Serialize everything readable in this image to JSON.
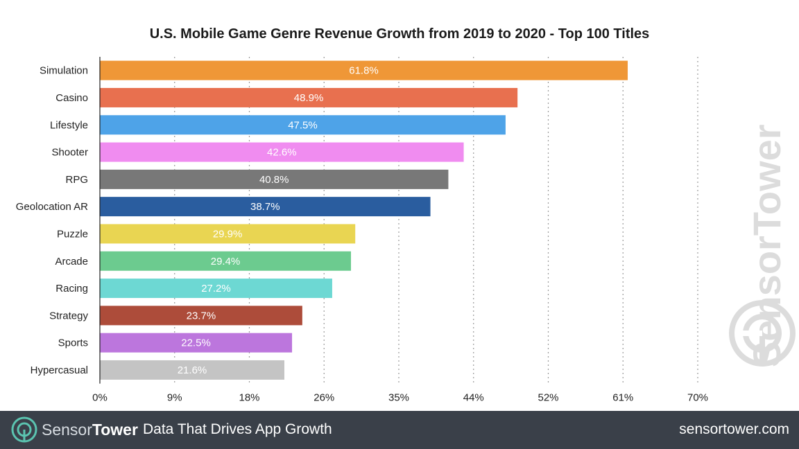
{
  "chart_data": {
    "type": "bar",
    "orientation": "horizontal",
    "title": "U.S. Mobile Game Genre Revenue Growth from 2019 to 2020 - Top 100 Titles",
    "xlabel": "",
    "ylabel": "",
    "xlim": [
      0,
      70
    ],
    "grid": "vertical dotted",
    "x_ticks": [
      "0%",
      "9%",
      "18%",
      "26%",
      "35%",
      "44%",
      "52%",
      "61%",
      "70%"
    ],
    "categories": [
      "Simulation",
      "Casino",
      "Lifestyle",
      "Shooter",
      "RPG",
      "Geolocation AR",
      "Puzzle",
      "Arcade",
      "Racing",
      "Strategy",
      "Sports",
      "Hypercasual"
    ],
    "values": [
      61.8,
      48.9,
      47.5,
      42.6,
      40.8,
      38.7,
      29.9,
      29.4,
      27.2,
      23.7,
      22.5,
      21.6
    ],
    "value_labels": [
      "61.8%",
      "48.9%",
      "47.5%",
      "42.6%",
      "40.8%",
      "38.7%",
      "29.9%",
      "29.4%",
      "27.2%",
      "23.7%",
      "22.5%",
      "21.6%"
    ],
    "colors": [
      "#ef9737",
      "#e8704f",
      "#4ea3e8",
      "#f08cf0",
      "#787878",
      "#2a5d9f",
      "#e9d552",
      "#6ccb8f",
      "#6dd8d3",
      "#ad4c3a",
      "#bc76dd",
      "#c4c4c4"
    ]
  },
  "watermark": {
    "text": "SensorTower",
    "icon": "sensortower-logo-icon",
    "color": "#dcdcdc"
  },
  "footer": {
    "brand_part1": "Sensor",
    "brand_part2": "Tower",
    "tagline": "Data That Drives App Growth",
    "url": "sensortower.com",
    "background": "#3a4049",
    "icon": "sensortower-logo-icon"
  }
}
